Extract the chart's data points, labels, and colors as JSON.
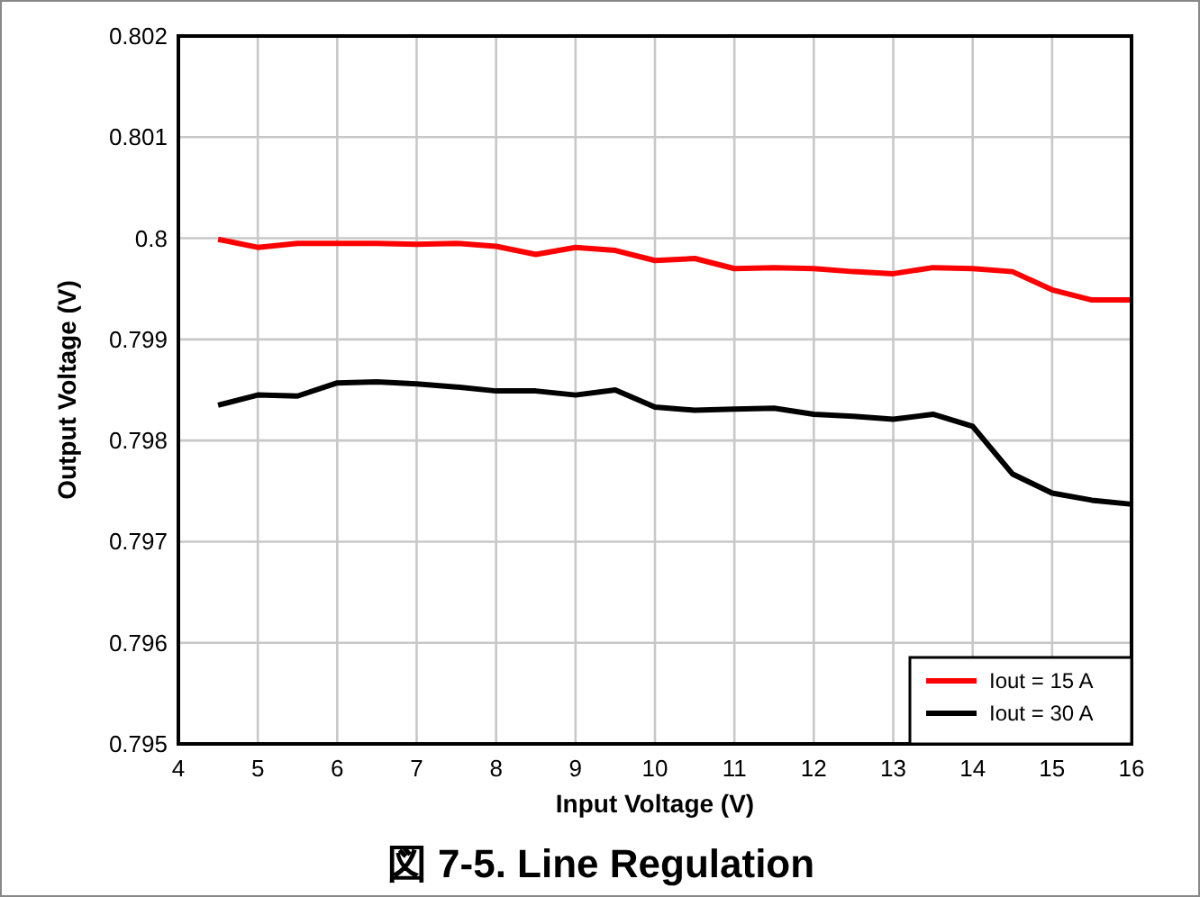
{
  "chart_data": {
    "type": "line",
    "title": "図 7-5. Line Regulation",
    "xlabel": "Input Voltage (V)",
    "ylabel": "Output Voltage (V)",
    "x": [
      4.5,
      5,
      5.5,
      6,
      6.5,
      7,
      7.5,
      8,
      8.5,
      9,
      9.5,
      10,
      10.5,
      11,
      11.5,
      12,
      12.5,
      13,
      13.5,
      14,
      14.5,
      15,
      15.5,
      16
    ],
    "series": [
      {
        "name": "Iout = 15 A",
        "color": "#ff0000",
        "values": [
          0.79999,
          0.79991,
          0.79995,
          0.79995,
          0.79995,
          0.79994,
          0.79995,
          0.79992,
          0.79984,
          0.79991,
          0.79988,
          0.79978,
          0.7998,
          0.7997,
          0.79971,
          0.7997,
          0.79967,
          0.79965,
          0.79971,
          0.7997,
          0.79967,
          0.79949,
          0.79939,
          0.79939
        ]
      },
      {
        "name": "Iout = 30 A",
        "color": "#000000",
        "values": [
          0.79835,
          0.79845,
          0.79844,
          0.79857,
          0.79858,
          0.79856,
          0.79853,
          0.79849,
          0.79849,
          0.79845,
          0.7985,
          0.79833,
          0.7983,
          0.79831,
          0.79832,
          0.79826,
          0.79824,
          0.79821,
          0.79826,
          0.79814,
          0.79767,
          0.79748,
          0.79741,
          0.79737
        ]
      }
    ],
    "xlim": [
      4,
      16
    ],
    "ylim": [
      0.795,
      0.802
    ],
    "xticks": [
      4,
      5,
      6,
      7,
      8,
      9,
      10,
      11,
      12,
      13,
      14,
      15,
      16
    ],
    "yticks": [
      0.795,
      0.796,
      0.797,
      0.798,
      0.799,
      0.8,
      0.801,
      0.802
    ],
    "grid": true,
    "legend": "bottom right",
    "marker": "none",
    "line_style": "solid"
  }
}
